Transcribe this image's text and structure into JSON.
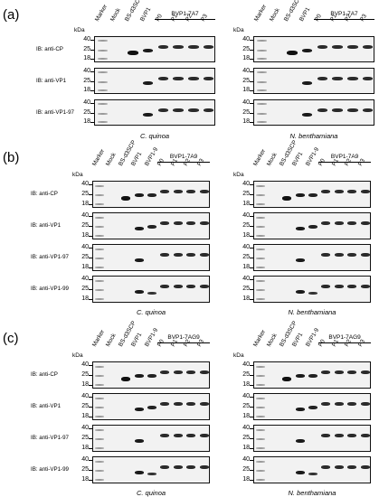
{
  "figure": {
    "panels": [
      {
        "label": "(a)",
        "group_label": "BVP1-7A7",
        "lanes": [
          "Marker",
          "Mock",
          "BS-d3SCP",
          "BVP1",
          "P0",
          "P1",
          "P2",
          "P3"
        ],
        "blots": [
          "IB: anti-CP",
          "IB: anti-VP1",
          "IB: anti-VP1-97"
        ],
        "species": [
          "C. quinoa",
          "N. benthamiana"
        ]
      },
      {
        "label": "(b)",
        "group_label": "BVP1-7A9",
        "lanes": [
          "Marker",
          "Mock",
          "BS-d3SCP",
          "BVP1",
          "BVP1-9",
          "P0",
          "P1",
          "P2",
          "P3"
        ],
        "blots": [
          "IB: anti-CP",
          "IB: anti-VP1",
          "IB: anti-VP1-97",
          "IB: anti-VP1-99"
        ],
        "species": [
          "C. quinoa",
          "N. benthamiana"
        ]
      },
      {
        "label": "(c)",
        "group_label": "BVP1-7AG9",
        "lanes": [
          "Marker",
          "Mock",
          "BS-d3SCP",
          "BVP1",
          "BVP1-9",
          "P0",
          "P1",
          "P2",
          "P3"
        ],
        "blots": [
          "IB: anti-CP",
          "IB: anti-VP1",
          "IB: anti-VP1-97",
          "IB: anti-VP1-99"
        ],
        "species": [
          "C. quinoa",
          "N. benthamiana"
        ]
      }
    ],
    "kda_label": "kDa",
    "mw_markers": [
      "40",
      "25",
      "18"
    ]
  }
}
